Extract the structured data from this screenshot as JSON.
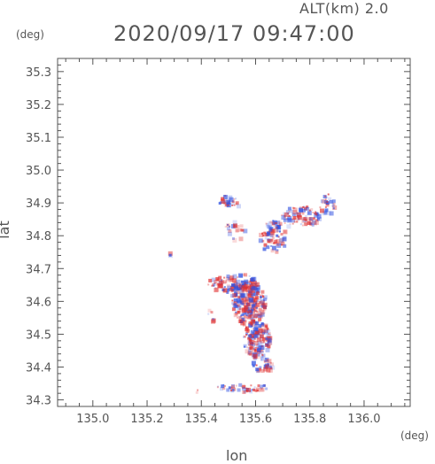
{
  "header": {
    "alt_label": "ALT(km)  2.0",
    "datetime": "2020/09/17 09:47:00"
  },
  "chart_data": {
    "type": "heatmap",
    "title": "2020/09/17 09:47:00",
    "xlabel": "lon",
    "ylabel": "lat",
    "xunit": "(deg)",
    "yunit": "(deg)",
    "xlim": [
      134.87,
      136.17
    ],
    "ylim": [
      34.28,
      35.34
    ],
    "xticks": [
      135.0,
      135.2,
      135.4,
      135.6,
      135.8,
      136.0
    ],
    "yticks": [
      34.3,
      34.4,
      34.5,
      34.6,
      34.7,
      34.8,
      34.9,
      35.0,
      35.1,
      35.2,
      35.3
    ],
    "xtick_labels": [
      "135.0",
      "135.2",
      "135.4",
      "135.6",
      "135.8",
      "136.0"
    ],
    "ytick_labels": [
      "34.3",
      "34.4",
      "34.5",
      "34.6",
      "34.7",
      "34.8",
      "34.9",
      "35.0",
      "35.1",
      "35.2",
      "35.3"
    ],
    "colors": {
      "positive": "#e03030",
      "negative": "#3050e0",
      "axis": "#555555"
    },
    "grid": false,
    "clusters": [
      {
        "lon": 135.57,
        "lat": 34.6,
        "r_lon": 0.06,
        "r_lat": 0.07,
        "n": 260
      },
      {
        "lon": 135.6,
        "lat": 34.49,
        "r_lon": 0.05,
        "r_lat": 0.06,
        "n": 170
      },
      {
        "lon": 135.53,
        "lat": 34.655,
        "r_lon": 0.07,
        "r_lat": 0.035,
        "n": 100
      },
      {
        "lon": 135.62,
        "lat": 34.41,
        "r_lon": 0.04,
        "r_lat": 0.02,
        "n": 30
      },
      {
        "lon": 135.55,
        "lat": 34.34,
        "r_lon": 0.1,
        "r_lat": 0.012,
        "n": 50
      },
      {
        "lon": 135.66,
        "lat": 34.8,
        "r_lon": 0.05,
        "r_lat": 0.05,
        "n": 90
      },
      {
        "lon": 135.76,
        "lat": 34.86,
        "r_lon": 0.07,
        "r_lat": 0.035,
        "n": 90
      },
      {
        "lon": 135.86,
        "lat": 34.9,
        "r_lon": 0.03,
        "r_lat": 0.03,
        "n": 30
      },
      {
        "lon": 135.5,
        "lat": 34.91,
        "r_lon": 0.04,
        "r_lat": 0.02,
        "n": 30
      },
      {
        "lon": 135.52,
        "lat": 34.82,
        "r_lon": 0.04,
        "r_lat": 0.03,
        "n": 22
      },
      {
        "lon": 135.45,
        "lat": 34.66,
        "r_lon": 0.03,
        "r_lat": 0.02,
        "n": 22
      },
      {
        "lon": 135.43,
        "lat": 34.56,
        "r_lon": 0.015,
        "r_lat": 0.02,
        "n": 6
      },
      {
        "lon": 135.28,
        "lat": 34.75,
        "r_lon": 0.005,
        "r_lat": 0.006,
        "n": 3
      },
      {
        "lon": 135.38,
        "lat": 34.33,
        "r_lon": 0.006,
        "r_lat": 0.004,
        "n": 2
      }
    ]
  }
}
